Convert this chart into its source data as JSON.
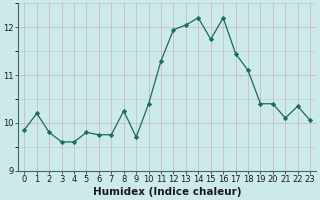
{
  "x": [
    0,
    1,
    2,
    3,
    4,
    5,
    6,
    7,
    8,
    9,
    10,
    11,
    12,
    13,
    14,
    15,
    16,
    17,
    18,
    19,
    20,
    21,
    22,
    23
  ],
  "y": [
    9.85,
    10.2,
    9.8,
    9.6,
    9.6,
    9.8,
    9.75,
    9.75,
    10.25,
    9.7,
    10.4,
    11.3,
    11.95,
    12.05,
    12.2,
    11.75,
    12.2,
    11.45,
    11.1,
    10.4,
    10.4,
    10.1,
    10.35,
    10.05
  ],
  "line_color": "#1a6b5a",
  "marker_color": "#1a6b5a",
  "bg_color": "#cceaea",
  "grid_color": "#cc9999",
  "xlabel": "Humidex (Indice chaleur)",
  "xlim": [
    -0.5,
    23.5
  ],
  "ylim": [
    9.0,
    12.5
  ],
  "yticks": [
    9,
    10,
    11,
    12
  ],
  "xticks": [
    0,
    1,
    2,
    3,
    4,
    5,
    6,
    7,
    8,
    9,
    10,
    11,
    12,
    13,
    14,
    15,
    16,
    17,
    18,
    19,
    20,
    21,
    22,
    23
  ],
  "xlabel_fontsize": 7.5,
  "tick_fontsize": 6.0,
  "grid_alpha": 0.55,
  "linewidth": 0.9,
  "markersize": 2.2
}
